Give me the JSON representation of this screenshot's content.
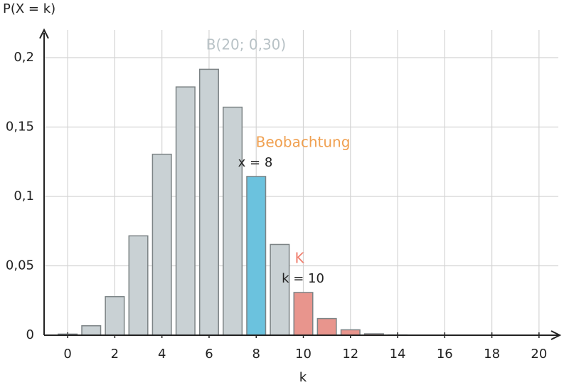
{
  "chart_data": {
    "type": "bar",
    "title": "B(20; 0,30)",
    "xlabel": "k",
    "ylabel": "P(X = k)",
    "categories": [
      0,
      1,
      2,
      3,
      4,
      5,
      6,
      7,
      8,
      9,
      10,
      11,
      12,
      13,
      14,
      15,
      16,
      17,
      18,
      19,
      20
    ],
    "values": [
      0.0008,
      0.0068,
      0.0278,
      0.0716,
      0.1304,
      0.1789,
      0.1916,
      0.1643,
      0.1144,
      0.0654,
      0.0308,
      0.012,
      0.0039,
      0.001,
      0.0002,
      0,
      0,
      0,
      0,
      0,
      0
    ],
    "colors": [
      "#c9d1d4",
      "#c9d1d4",
      "#c9d1d4",
      "#c9d1d4",
      "#c9d1d4",
      "#c9d1d4",
      "#c9d1d4",
      "#c9d1d4",
      "#6bc2de",
      "#c9d1d4",
      "#e8958d",
      "#e8958d",
      "#e8958d",
      "#e8958d",
      "#e8958d",
      "#e8958d",
      "#e8958d",
      "#e8958d",
      "#e8958d",
      "#e8958d",
      "#e8958d"
    ],
    "xlim": [
      -1,
      21
    ],
    "xticks": [
      0,
      2,
      4,
      6,
      8,
      10,
      12,
      14,
      16,
      18,
      20
    ],
    "ylim": [
      0,
      0.22
    ],
    "yticks": [
      0,
      {
        "value": 0.05,
        "label": "0,05"
      },
      {
        "value": 0.1,
        "label": "0,1"
      },
      {
        "value": 0.15,
        "label": "0,15"
      },
      {
        "value": 0.2,
        "label": "0,2"
      }
    ],
    "grid": true,
    "annotations": [
      {
        "text": "Beobachtung",
        "color": "#f0a050"
      },
      {
        "text": "x = 8",
        "color": "#222222"
      },
      {
        "text": "K",
        "color": "#f08070"
      },
      {
        "text": "k = 10",
        "color": "#222222"
      }
    ]
  }
}
